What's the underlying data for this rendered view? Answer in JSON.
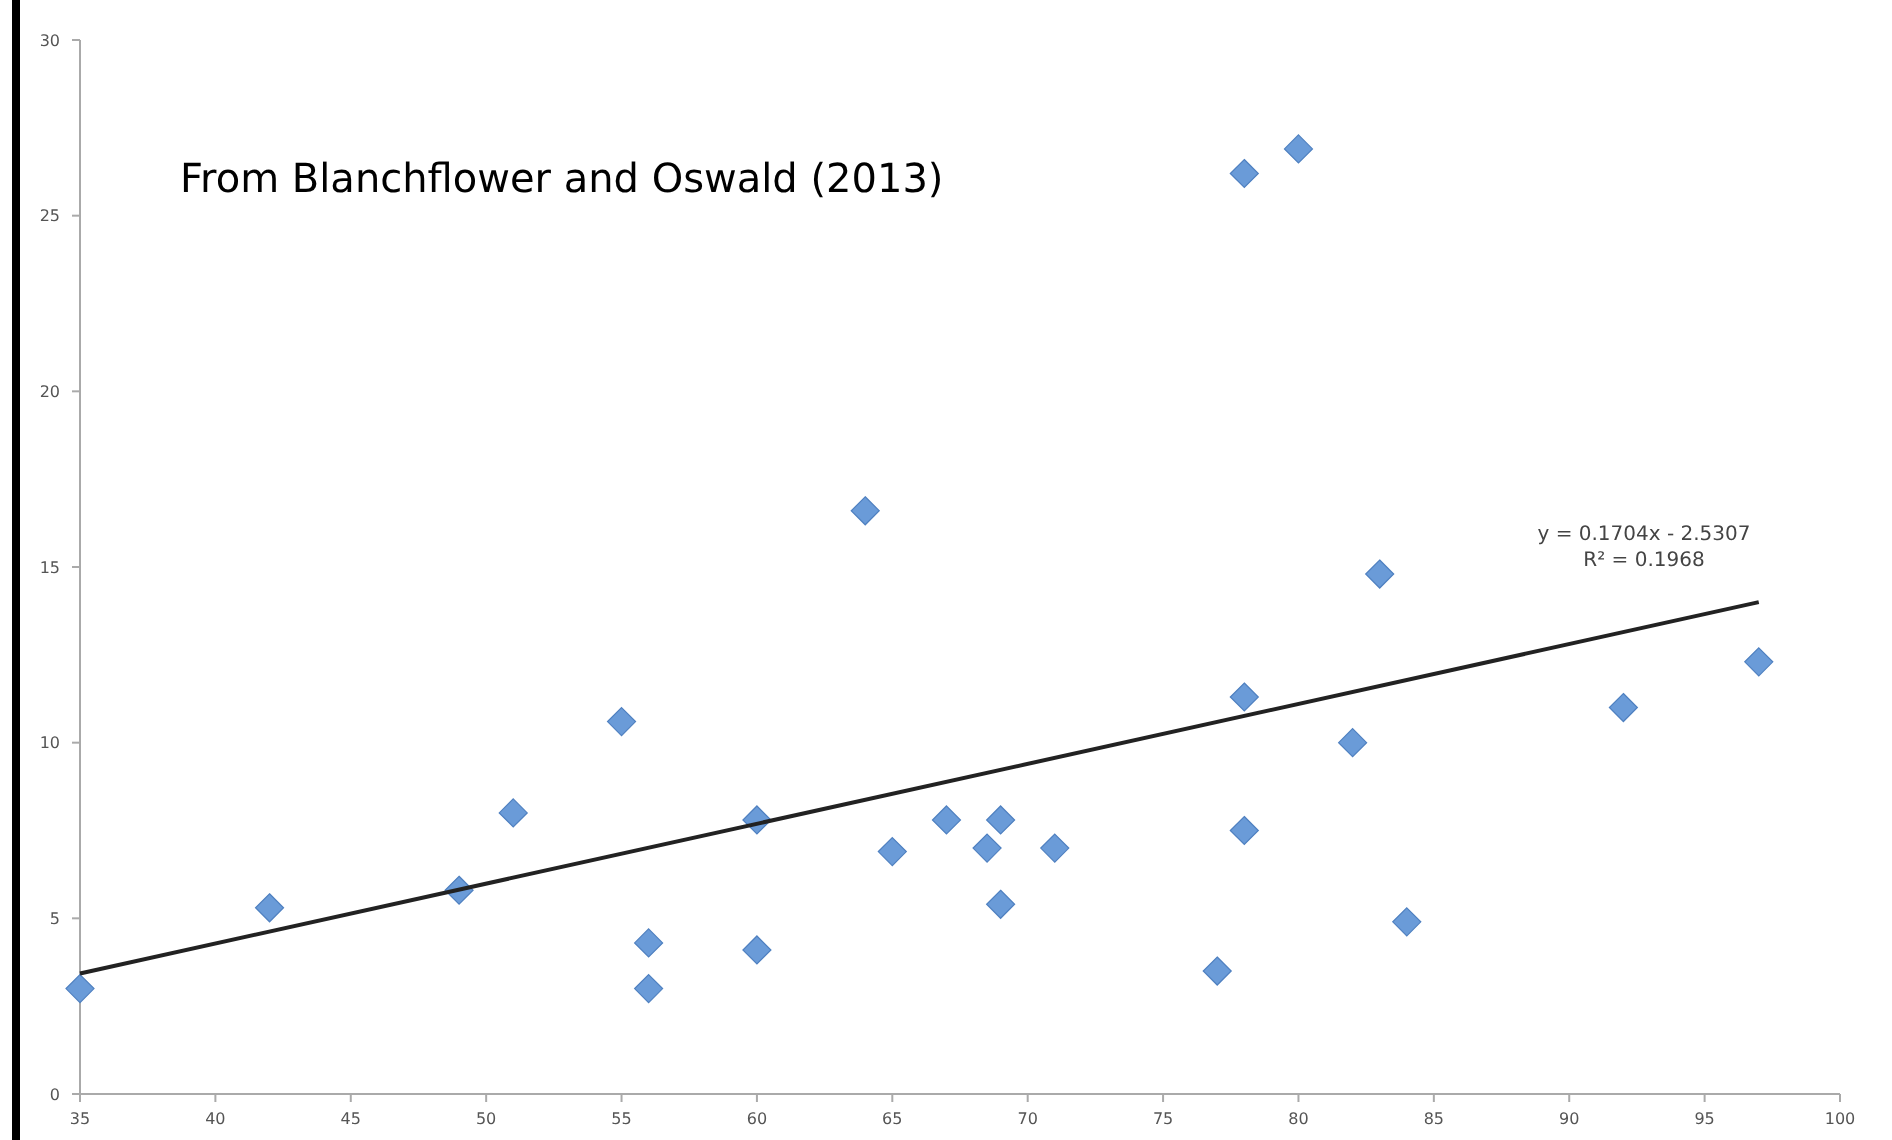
{
  "chart_data": {
    "type": "scatter",
    "annotations": [
      "From Blanchflower and Oswald (2013)",
      "y = 0.1704x - 2.5307",
      "R² = 0.1968"
    ],
    "xlim": [
      35,
      100
    ],
    "xticks": [
      35,
      40,
      45,
      50,
      55,
      60,
      65,
      70,
      75,
      80,
      85,
      90,
      95,
      100
    ],
    "ylim": [
      0,
      30
    ],
    "yticks": [
      0,
      5,
      10,
      15,
      20,
      25,
      30
    ],
    "marker": "diamond",
    "series": [
      {
        "color": "#6a9bd8",
        "x": [
          35,
          42,
          49,
          51,
          55,
          56,
          56,
          60,
          60,
          64,
          65,
          67,
          68.5,
          69,
          69,
          71,
          77,
          78,
          78,
          78,
          80,
          82,
          83,
          84,
          92,
          97
        ],
        "values": [
          3.0,
          5.3,
          5.8,
          8.0,
          10.6,
          4.3,
          3.0,
          7.8,
          4.1,
          16.6,
          6.9,
          7.8,
          7.0,
          7.8,
          5.4,
          7.0,
          3.5,
          26.2,
          11.3,
          7.5,
          26.9,
          10.0,
          14.8,
          4.9,
          11.0,
          12.3
        ]
      },
      {
        "type": "line",
        "color": "#222222",
        "line_style": "solid",
        "marker": "none",
        "x": [
          35,
          97
        ],
        "values": [
          3.43,
          14.0
        ]
      }
    ]
  }
}
